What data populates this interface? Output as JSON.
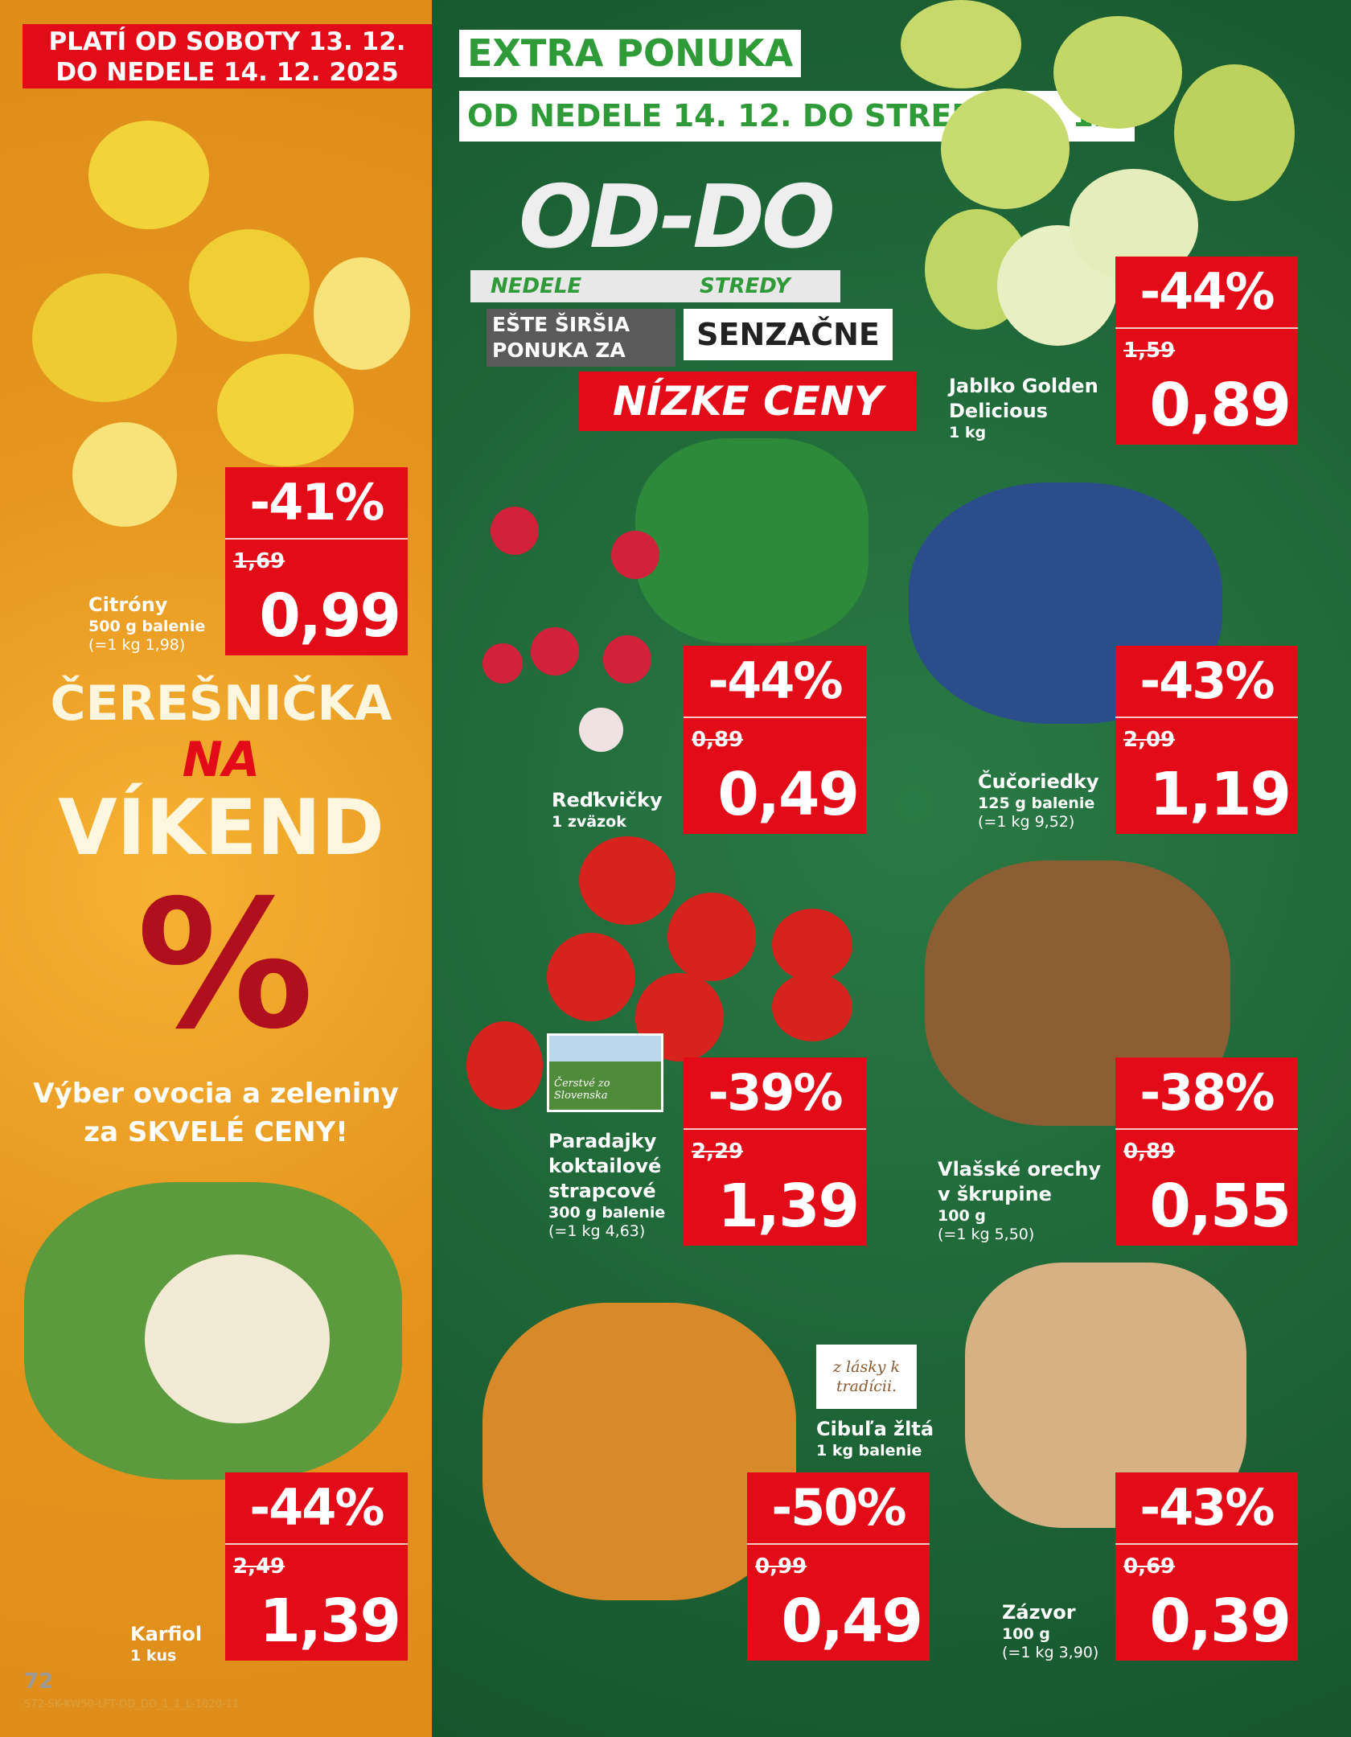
{
  "header": {
    "validity_line1": "PLATÍ OD SOBOTY 13. 12.",
    "validity_line2": "DO NEDELE 14. 12. 2025",
    "extra": "EXTRA PONUKA",
    "extra_dates": "OD NEDELE 14. 12. DO STREDY 17. 12."
  },
  "logo": {
    "title": "OD-DO",
    "from": "NEDELE",
    "to": "STREDY",
    "line1": "EŠTE ŠIRŠIA",
    "line2": "PONUKA ZA",
    "line3": "SENZAČNE",
    "line4": "NÍZKE CENY"
  },
  "promo": {
    "line1": "ČEREŠNIČKA",
    "line2": "NA",
    "line3": "VÍKEND",
    "symbol": "%",
    "sub1": "Výber ovocia a zeleniny",
    "sub2": "za SKVELÉ CENY!"
  },
  "badges": {
    "fresh_sk": "Čerstvé zo Slovenska",
    "tradition": "z lásky k tradícii."
  },
  "products": [
    {
      "name": "Citróny",
      "size": "500 g balenie",
      "unit": "(=1 kg 1,98)",
      "discount": "-41%",
      "old": "1,69",
      "price": "0,99"
    },
    {
      "name": "Jablko Golden Delicious",
      "size": "1 kg",
      "unit": "",
      "discount": "-44%",
      "old": "1,59",
      "price": "0,89"
    },
    {
      "name": "Reďkvičky",
      "size": "1 zväzok",
      "unit": "",
      "discount": "-44%",
      "old": "0,89",
      "price": "0,49"
    },
    {
      "name": "Čučoriedky",
      "size": "125 g balenie",
      "unit": "(=1 kg 9,52)",
      "discount": "-43%",
      "old": "2,09",
      "price": "1,19"
    },
    {
      "name": "Paradajky koktailové strapcové",
      "size": "300 g balenie",
      "unit": "(=1 kg 4,63)",
      "discount": "-39%",
      "old": "2,29",
      "price": "1,39"
    },
    {
      "name": "Vlašské orechy v škrupine",
      "size": "100 g",
      "unit": "(=1 kg 5,50)",
      "discount": "-38%",
      "old": "0,89",
      "price": "0,55"
    },
    {
      "name": "Karfiol",
      "size": "1 kus",
      "unit": "",
      "discount": "-44%",
      "old": "2,49",
      "price": "1,39"
    },
    {
      "name": "Cibuľa žltá",
      "size": "1 kg balenie",
      "unit": "",
      "discount": "-50%",
      "old": "0,99",
      "price": "0,49"
    },
    {
      "name": "Zázvor",
      "size": "100 g",
      "unit": "(=1 kg 3,90)",
      "discount": "-43%",
      "old": "0,69",
      "price": "0,39"
    }
  ],
  "footer": {
    "page": "72",
    "code": "S72-SK-KW50-LFT-OD_DO_1_1_L-1020-11"
  },
  "colors": {
    "red": "#e30b17",
    "green": "#1d6436",
    "orange": "#e6961e",
    "accent_green": "#2e9a38"
  }
}
